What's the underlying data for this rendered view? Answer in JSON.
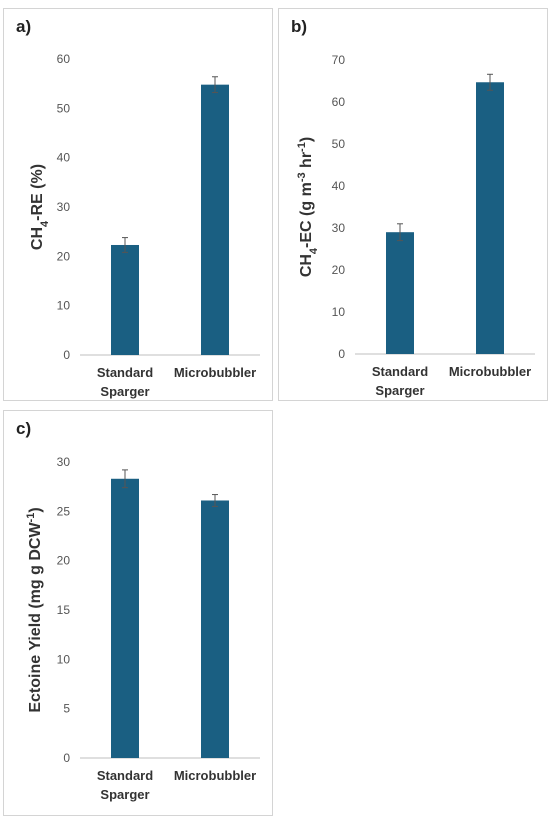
{
  "chart_data": [
    {
      "type": "bar",
      "panel_label": "a)",
      "categories": [
        "Standard Sparger",
        "Microbubbler"
      ],
      "values": [
        22.3,
        54.8
      ],
      "errors": [
        1.5,
        1.6
      ],
      "ylabel_parts": [
        {
          "t": "CH"
        },
        {
          "t": "4",
          "sub": true
        },
        {
          "t": "-RE (%)"
        }
      ],
      "ylim": [
        0,
        60
      ],
      "yticks": [
        0,
        10,
        20,
        30,
        40,
        50,
        60
      ],
      "grid": false,
      "color": "#1a5f82"
    },
    {
      "type": "bar",
      "panel_label": "b)",
      "categories": [
        "Standard Sparger",
        "Microbubbler"
      ],
      "values": [
        29.0,
        64.7
      ],
      "errors": [
        2.0,
        1.9
      ],
      "ylabel_parts": [
        {
          "t": "CH"
        },
        {
          "t": "4",
          "sub": true
        },
        {
          "t": "-EC (g m"
        },
        {
          "t": "-3",
          "sup": true
        },
        {
          "t": " hr"
        },
        {
          "t": "-1",
          "sup": true
        },
        {
          "t": ")"
        }
      ],
      "ylim": [
        0,
        70
      ],
      "yticks": [
        0,
        10,
        20,
        30,
        40,
        50,
        60,
        70
      ],
      "grid": false,
      "color": "#1a5f82"
    },
    {
      "type": "bar",
      "panel_label": "c)",
      "categories": [
        "Standard Sparger",
        "Microbubbler"
      ],
      "values": [
        28.3,
        26.1
      ],
      "errors": [
        0.9,
        0.6
      ],
      "ylabel_parts": [
        {
          "t": "Ectoine Yield (mg g DCW"
        },
        {
          "t": "-1",
          "sup": true
        },
        {
          "t": ")"
        }
      ],
      "ylim": [
        0,
        30
      ],
      "yticks": [
        0,
        5,
        10,
        15,
        20,
        25,
        30
      ],
      "grid": false,
      "color": "#1a5f82"
    }
  ]
}
